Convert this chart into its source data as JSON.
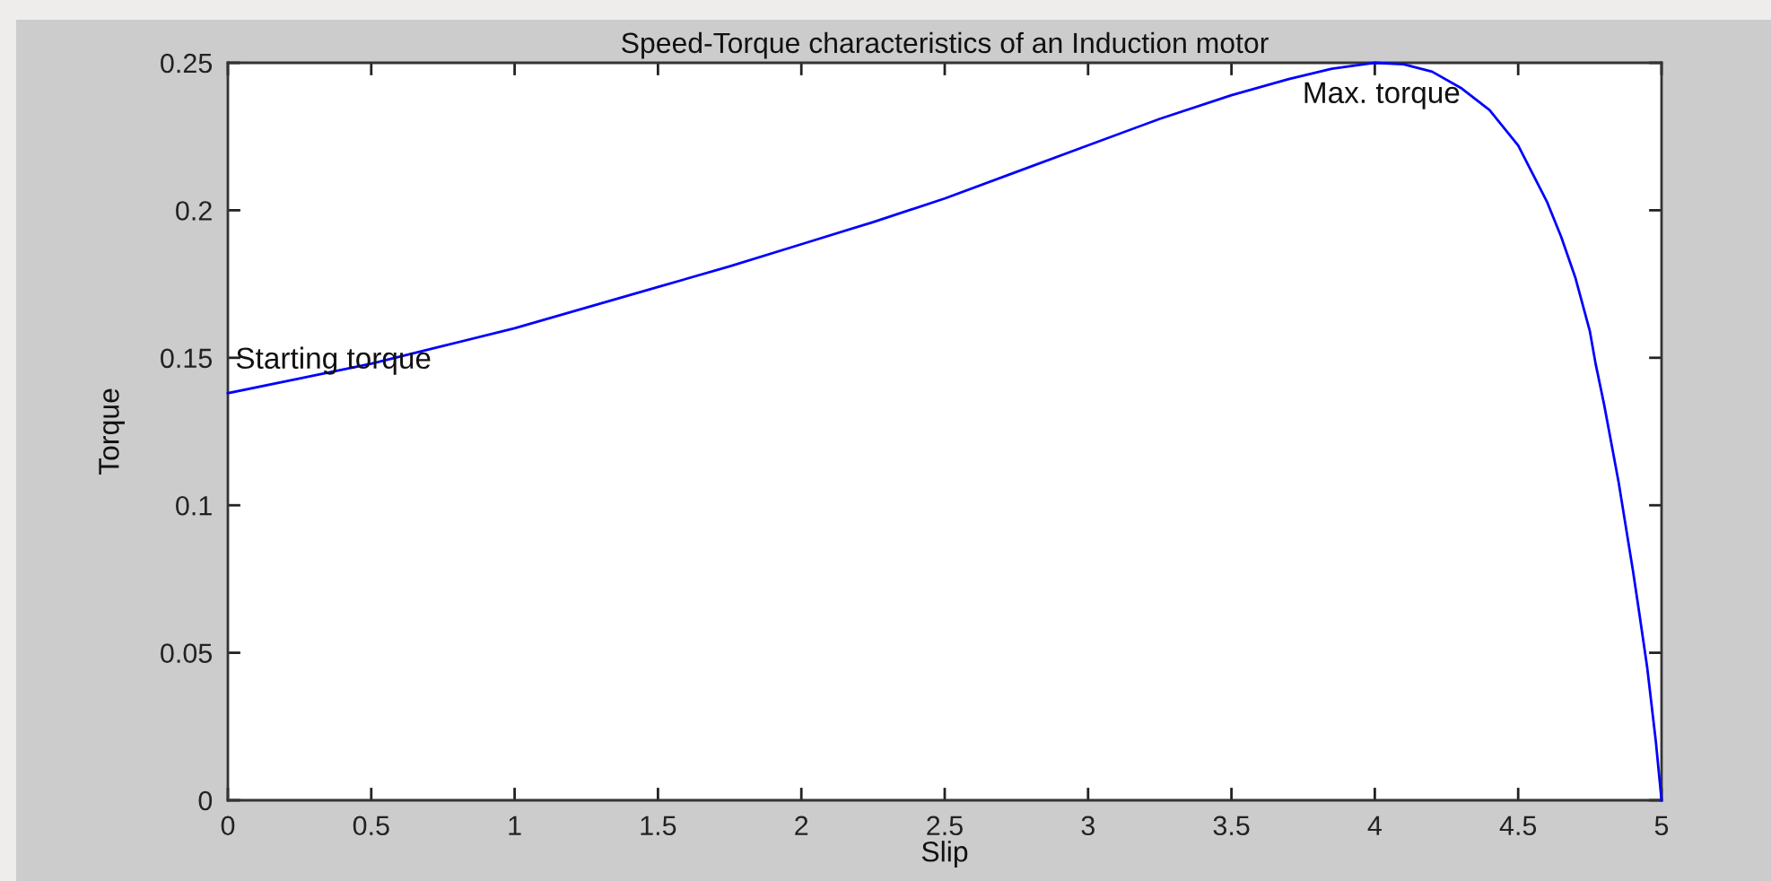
{
  "chart_data": {
    "type": "line",
    "title": "Speed-Torque characteristics of an Induction motor",
    "xlabel": "Slip",
    "ylabel": "Torque",
    "x": [
      0,
      0.25,
      0.5,
      0.75,
      1.0,
      1.25,
      1.5,
      1.75,
      2.0,
      2.25,
      2.5,
      2.75,
      3.0,
      3.25,
      3.5,
      3.7,
      3.85,
      4.0,
      4.1,
      4.2,
      4.3,
      4.4,
      4.5,
      4.55,
      4.6,
      4.65,
      4.7,
      4.75,
      4.77,
      4.8,
      4.85,
      4.9,
      4.92,
      4.95,
      4.98,
      5.0
    ],
    "series": [
      {
        "color": "#0000ff",
        "values": [
          0.138,
          0.143,
          0.148,
          0.154,
          0.16,
          0.167,
          0.174,
          0.181,
          0.1885,
          0.196,
          0.204,
          0.213,
          0.222,
          0.231,
          0.239,
          0.2445,
          0.248,
          0.25,
          0.2495,
          0.247,
          0.2415,
          0.234,
          0.222,
          0.2125,
          0.203,
          0.191,
          0.177,
          0.159,
          0.148,
          0.134,
          0.108,
          0.078,
          0.065,
          0.045,
          0.02,
          0.0
        ]
      }
    ],
    "xlim": [
      0,
      5
    ],
    "ylim": [
      0,
      0.25
    ],
    "xticks": [
      0,
      0.5,
      1,
      1.5,
      2,
      2.5,
      3,
      3.5,
      4,
      4.5,
      5
    ],
    "yticks": [
      0,
      0.05,
      0.1,
      0.15,
      0.2,
      0.25
    ],
    "annotations": [
      {
        "text": "Starting torque",
        "x": 0,
        "y": 0.138
      },
      {
        "text": "Max. torque",
        "x": 4.0,
        "y": 0.25
      }
    ],
    "grid": false,
    "marker": "none",
    "line_style": "solid"
  }
}
